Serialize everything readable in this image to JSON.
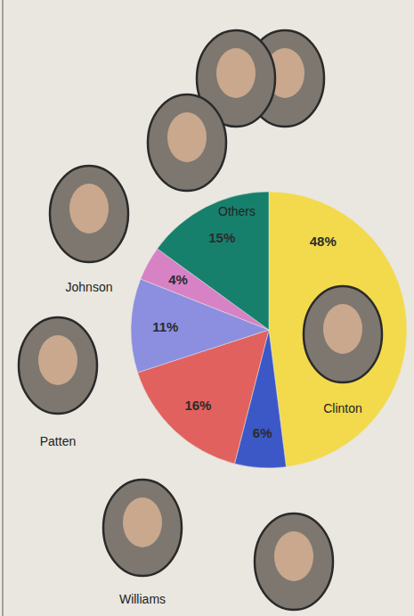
{
  "chart_data": {
    "type": "pie",
    "categories": [
      "Clinton",
      null,
      "Williams",
      "Patten",
      "Johnson",
      "Others"
    ],
    "values": [
      48,
      6,
      16,
      11,
      4,
      15
    ],
    "value_labels": [
      "48%",
      "6%",
      "16%",
      "11%",
      "4%",
      "15%"
    ],
    "colors": [
      "#f2da4c",
      "#3b58c6",
      "#e1615e",
      "#8c8fe0",
      "#d882c6",
      "#17806c"
    ],
    "data_labels": true
  }
}
